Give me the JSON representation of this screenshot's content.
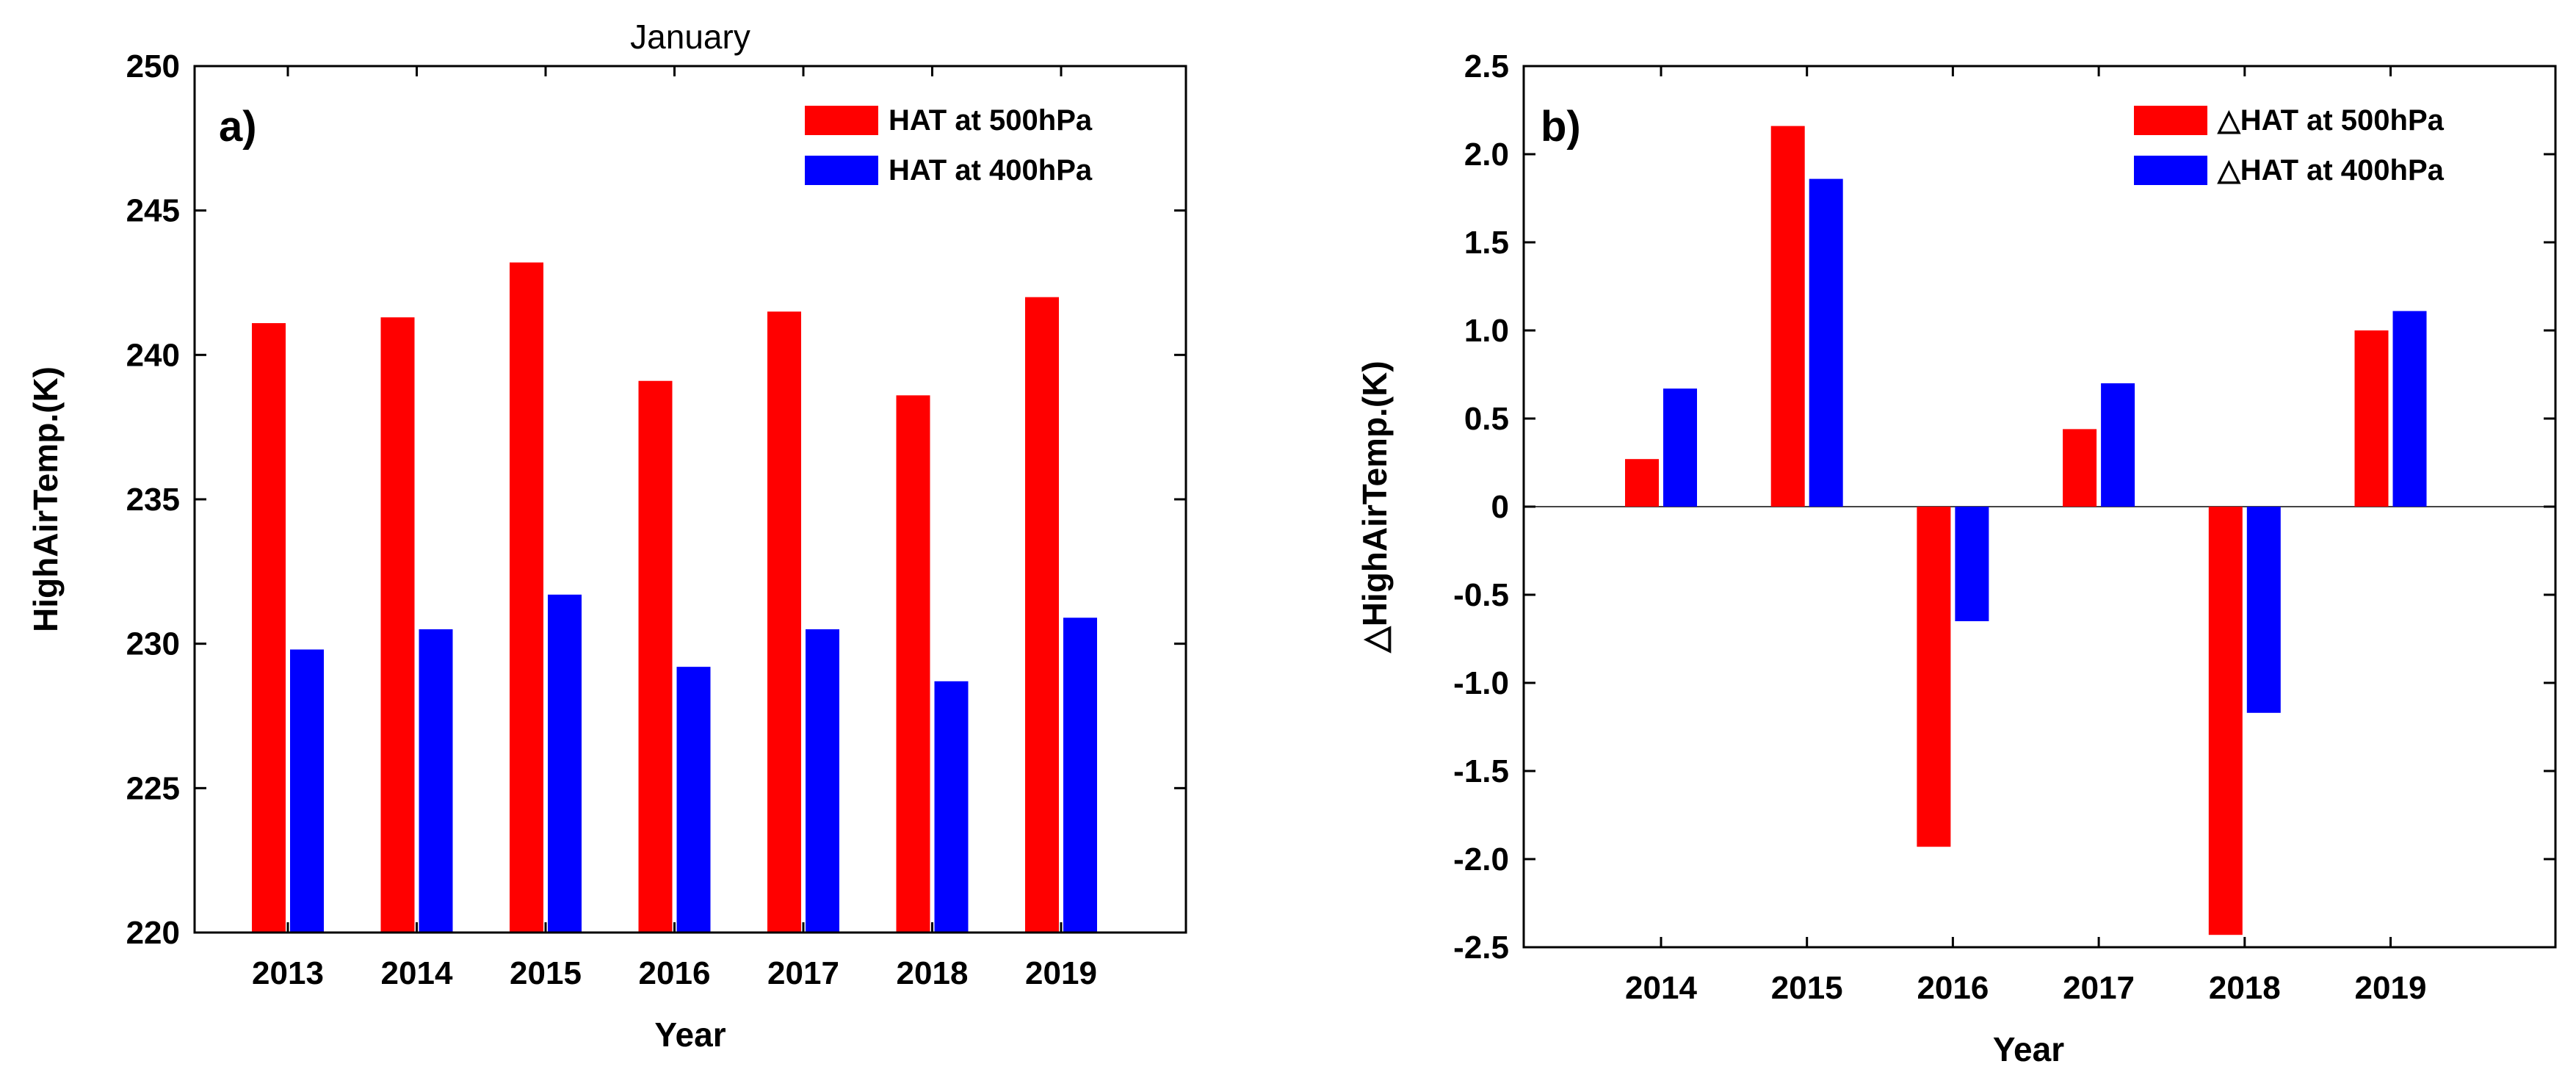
{
  "chart_data": [
    {
      "type": "bar",
      "panel": "a)",
      "title": "January",
      "xlabel": "Year",
      "ylabel": "HighAirTemp.(K)",
      "ylim": [
        220,
        250
      ],
      "yticks": [
        220,
        225,
        230,
        235,
        240,
        245,
        250
      ],
      "categories": [
        "2013",
        "2014",
        "2015",
        "2016",
        "2017",
        "2018",
        "2019"
      ],
      "legend_position": "top-right",
      "series": [
        {
          "name": "HAT at 500hPa",
          "color": "#ff0000",
          "values": [
            241.1,
            241.3,
            243.2,
            239.1,
            241.5,
            238.6,
            242.0
          ]
        },
        {
          "name": "HAT at 400hPa",
          "color": "#0000ff",
          "values": [
            229.8,
            230.5,
            231.7,
            229.2,
            230.5,
            228.7,
            230.9
          ]
        }
      ]
    },
    {
      "type": "bar",
      "panel": "b)",
      "title": "",
      "xlabel": "Year",
      "ylabel": "△HighAirTemp.(K)",
      "ylim": [
        -2.5,
        2.5
      ],
      "yticks": [
        -2.5,
        -2.0,
        -1.5,
        -1.0,
        -0.5,
        0,
        0.5,
        1.0,
        1.5,
        2.0,
        2.5
      ],
      "ytick_labels": [
        "-2.5",
        "-2.0",
        "-1.5",
        "-1.0",
        "-0.5",
        "0",
        "0.5",
        "1.0",
        "1.5",
        "2.0",
        "2.5"
      ],
      "categories": [
        "2014",
        "2015",
        "2016",
        "2017",
        "2018",
        "2019"
      ],
      "legend_position": "top-right",
      "zero_line": true,
      "series": [
        {
          "name": "△HAT at 500hPa",
          "color": "#ff0000",
          "values": [
            0.27,
            2.16,
            -1.93,
            0.44,
            -2.43,
            1.0
          ]
        },
        {
          "name": "△HAT at 400hPa",
          "color": "#0000ff",
          "values": [
            0.67,
            1.86,
            -0.65,
            0.7,
            -1.17,
            1.11
          ]
        }
      ]
    }
  ]
}
